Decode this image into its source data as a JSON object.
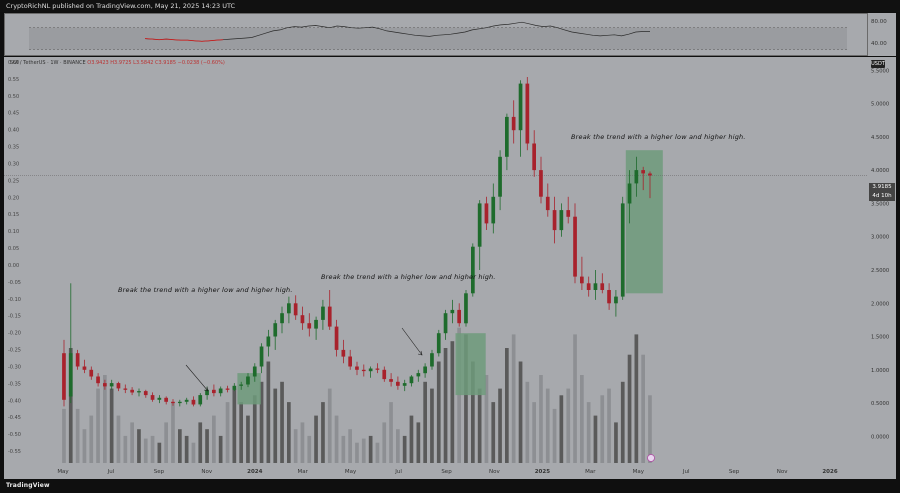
{
  "header": {
    "text": "CryptoRichNL published on TradingView.com, May 21, 2025 14:23 UTC"
  },
  "legend": {
    "symbol": "SUI / TetherUS · 1W · BINANCE",
    "open": "O3.9423",
    "high": "H3.9725",
    "low": "L3.5842",
    "close": "C3.9185",
    "change": "−0.0238 (−0.60%)"
  },
  "badges": {
    "currency": "USDT",
    "last_price": "3.9185",
    "countdown": "4d 10h"
  },
  "annotations": {
    "a1": "Break the trend with a higher low and higher high.",
    "a2": "Break the trend with a higher low and higher high.",
    "a3": "Break the trend with a higher low and higher high."
  },
  "footer": {
    "brand": "TradingView"
  },
  "colors": {
    "bull": "#1e6b2c",
    "bear": "#a8222c",
    "zone": "#6f9b7b",
    "background": "#a7a9ad"
  },
  "chart_data": [
    {
      "type": "line",
      "title": "",
      "panel": "RSI",
      "y_ticks": [
        80,
        40
      ],
      "ylim": [
        20,
        95
      ],
      "band": [
        30,
        70
      ],
      "values": [
        50,
        49,
        48,
        49,
        48,
        47,
        47,
        46,
        45,
        46,
        47,
        48,
        49,
        50,
        51,
        52,
        56,
        60,
        64,
        66,
        70,
        72,
        71,
        73,
        74,
        72,
        70,
        73,
        72,
        70,
        69,
        70,
        71,
        68,
        64,
        62,
        60,
        58,
        56,
        55,
        54,
        56,
        57,
        58,
        60,
        62,
        66,
        68,
        70,
        73,
        75,
        76,
        78,
        80,
        77,
        74,
        72,
        73,
        70,
        66,
        62,
        60,
        58,
        56,
        55,
        56,
        57,
        55,
        58,
        62,
        63,
        63
      ]
    },
    {
      "type": "candlestick",
      "title": "",
      "left_axis_ticks": [
        "0.60",
        "0.55",
        "0.50",
        "0.45",
        "0.40",
        "0.35",
        "0.30",
        "0.25",
        "0.20",
        "0.15",
        "0.10",
        "0.05",
        "0.00",
        "-0.05",
        "-0.10",
        "-0.15",
        "-0.20",
        "-0.25",
        "-0.30",
        "-0.35",
        "-0.40",
        "-0.45",
        "-0.50",
        "-0.55"
      ],
      "right_axis_ticks": [
        "5.5000",
        "5.0000",
        "4.5000",
        "4.0000",
        "3.5000",
        "3.0000",
        "2.5000",
        "2.0000",
        "1.5000",
        "1.0000",
        "0.5000",
        "0.0000"
      ],
      "ylim": [
        -0.4,
        5.7
      ],
      "x_ticks": [
        "May",
        "Jul",
        "Sep",
        "Nov",
        "2024",
        "Mar",
        "May",
        "Jul",
        "Sep",
        "Nov",
        "2025",
        "Mar",
        "May",
        "Jul",
        "Sep",
        "Nov",
        "2026"
      ],
      "last_price": 3.9185,
      "candles": [
        [
          1.25,
          1.45,
          0.45,
          0.55
        ],
        [
          0.6,
          2.3,
          0.5,
          1.25
        ],
        [
          1.25,
          1.3,
          1.0,
          1.05
        ],
        [
          1.05,
          1.15,
          0.95,
          1.0
        ],
        [
          1.0,
          1.05,
          0.85,
          0.9
        ],
        [
          0.9,
          0.95,
          0.75,
          0.8
        ],
        [
          0.8,
          0.85,
          0.7,
          0.75
        ],
        [
          0.75,
          0.85,
          0.7,
          0.8
        ],
        [
          0.8,
          0.82,
          0.68,
          0.72
        ],
        [
          0.72,
          0.78,
          0.65,
          0.7
        ],
        [
          0.7,
          0.74,
          0.62,
          0.66
        ],
        [
          0.66,
          0.72,
          0.6,
          0.68
        ],
        [
          0.68,
          0.7,
          0.58,
          0.62
        ],
        [
          0.62,
          0.66,
          0.52,
          0.55
        ],
        [
          0.55,
          0.62,
          0.5,
          0.58
        ],
        [
          0.58,
          0.6,
          0.48,
          0.52
        ],
        [
          0.52,
          0.56,
          0.46,
          0.5
        ],
        [
          0.5,
          0.55,
          0.45,
          0.52
        ],
        [
          0.52,
          0.58,
          0.48,
          0.55
        ],
        [
          0.55,
          0.6,
          0.45,
          0.48
        ],
        [
          0.48,
          0.65,
          0.45,
          0.62
        ],
        [
          0.62,
          0.75,
          0.55,
          0.7
        ],
        [
          0.7,
          0.78,
          0.6,
          0.65
        ],
        [
          0.65,
          0.75,
          0.6,
          0.72
        ],
        [
          0.72,
          0.76,
          0.66,
          0.7
        ],
        [
          0.7,
          0.8,
          0.68,
          0.76
        ],
        [
          0.76,
          0.82,
          0.7,
          0.78
        ],
        [
          0.78,
          0.95,
          0.74,
          0.9
        ],
        [
          0.9,
          1.1,
          0.82,
          1.05
        ],
        [
          1.05,
          1.4,
          0.95,
          1.35
        ],
        [
          1.35,
          1.6,
          1.2,
          1.5
        ],
        [
          1.5,
          1.75,
          1.3,
          1.7
        ],
        [
          1.7,
          1.95,
          1.55,
          1.85
        ],
        [
          1.85,
          2.1,
          1.7,
          2.0
        ],
        [
          2.0,
          2.12,
          1.75,
          1.82
        ],
        [
          1.82,
          1.95,
          1.6,
          1.7
        ],
        [
          1.7,
          1.85,
          1.5,
          1.62
        ],
        [
          1.62,
          1.8,
          1.45,
          1.75
        ],
        [
          1.75,
          2.05,
          1.6,
          1.95
        ],
        [
          1.95,
          2.2,
          1.6,
          1.65
        ],
        [
          1.65,
          1.75,
          1.2,
          1.3
        ],
        [
          1.3,
          1.45,
          1.1,
          1.2
        ],
        [
          1.2,
          1.3,
          1.0,
          1.05
        ],
        [
          1.05,
          1.12,
          0.92,
          1.0
        ],
        [
          1.0,
          1.08,
          0.9,
          0.98
        ],
        [
          0.98,
          1.05,
          0.88,
          1.02
        ],
        [
          1.02,
          1.1,
          0.95,
          1.0
        ],
        [
          1.0,
          1.05,
          0.82,
          0.86
        ],
        [
          0.86,
          0.95,
          0.75,
          0.82
        ],
        [
          0.82,
          0.9,
          0.7,
          0.76
        ],
        [
          0.76,
          0.85,
          0.68,
          0.8
        ],
        [
          0.8,
          0.92,
          0.75,
          0.9
        ],
        [
          0.9,
          1.0,
          0.82,
          0.95
        ],
        [
          0.95,
          1.1,
          0.88,
          1.05
        ],
        [
          1.05,
          1.3,
          1.0,
          1.25
        ],
        [
          1.25,
          1.6,
          1.2,
          1.55
        ],
        [
          1.55,
          1.9,
          1.45,
          1.85
        ],
        [
          1.85,
          2.05,
          1.7,
          1.9
        ],
        [
          1.9,
          2.0,
          1.65,
          1.7
        ],
        [
          1.7,
          2.2,
          1.65,
          2.15
        ],
        [
          2.15,
          2.9,
          2.1,
          2.85
        ],
        [
          2.85,
          3.55,
          2.5,
          3.5
        ],
        [
          3.5,
          3.6,
          3.1,
          3.2
        ],
        [
          3.2,
          3.8,
          3.05,
          3.6
        ],
        [
          3.6,
          4.3,
          3.4,
          4.2
        ],
        [
          4.2,
          4.85,
          4.0,
          4.8
        ],
        [
          4.8,
          5.05,
          4.4,
          4.6
        ],
        [
          4.6,
          5.35,
          4.2,
          5.3
        ],
        [
          5.3,
          5.4,
          4.3,
          4.4
        ],
        [
          4.4,
          4.6,
          3.9,
          4.0
        ],
        [
          4.0,
          4.2,
          3.5,
          3.6
        ],
        [
          3.6,
          3.8,
          3.3,
          3.4
        ],
        [
          3.4,
          3.6,
          2.9,
          3.1
        ],
        [
          3.1,
          3.5,
          3.0,
          3.4
        ],
        [
          3.4,
          3.6,
          3.2,
          3.3
        ],
        [
          3.3,
          3.5,
          2.3,
          2.4
        ],
        [
          2.4,
          2.7,
          2.2,
          2.3
        ],
        [
          2.3,
          2.4,
          2.1,
          2.2
        ],
        [
          2.2,
          2.5,
          2.05,
          2.3
        ],
        [
          2.3,
          2.45,
          2.15,
          2.2
        ],
        [
          2.2,
          2.3,
          1.9,
          2.0
        ],
        [
          2.0,
          2.2,
          1.8,
          2.1
        ],
        [
          2.1,
          3.6,
          2.05,
          3.5
        ],
        [
          3.5,
          4.0,
          3.2,
          3.8
        ],
        [
          3.8,
          4.2,
          3.6,
          4.0
        ],
        [
          4.0,
          4.05,
          3.7,
          3.95
        ],
        [
          3.95,
          3.98,
          3.58,
          3.92
        ]
      ],
      "volume": [
        0.4,
        0.85,
        0.4,
        0.25,
        0.35,
        0.55,
        0.65,
        0.55,
        0.35,
        0.2,
        0.3,
        0.25,
        0.18,
        0.2,
        0.15,
        0.3,
        0.45,
        0.25,
        0.2,
        0.15,
        0.3,
        0.25,
        0.35,
        0.2,
        0.45,
        0.55,
        0.45,
        0.35,
        0.5,
        0.6,
        0.75,
        0.55,
        0.6,
        0.45,
        0.25,
        0.3,
        0.2,
        0.35,
        0.45,
        0.55,
        0.35,
        0.2,
        0.25,
        0.15,
        0.18,
        0.2,
        0.15,
        0.3,
        0.45,
        0.25,
        0.2,
        0.35,
        0.3,
        0.6,
        0.55,
        0.75,
        0.85,
        0.9,
        1.0,
        0.95,
        0.75,
        0.55,
        0.65,
        0.45,
        0.55,
        0.85,
        0.95,
        0.75,
        0.6,
        0.45,
        0.65,
        0.55,
        0.4,
        0.5,
        0.55,
        0.95,
        0.65,
        0.45,
        0.35,
        0.5,
        0.55,
        0.3,
        0.6,
        0.8,
        0.95,
        0.8,
        0.5
      ],
      "volume_max": 3.0,
      "zones": [
        [
          26,
          28,
          0.48,
          0.95
        ],
        [
          58,
          61,
          0.62,
          1.55
        ],
        [
          83,
          87,
          2.15,
          4.3
        ]
      ]
    }
  ]
}
